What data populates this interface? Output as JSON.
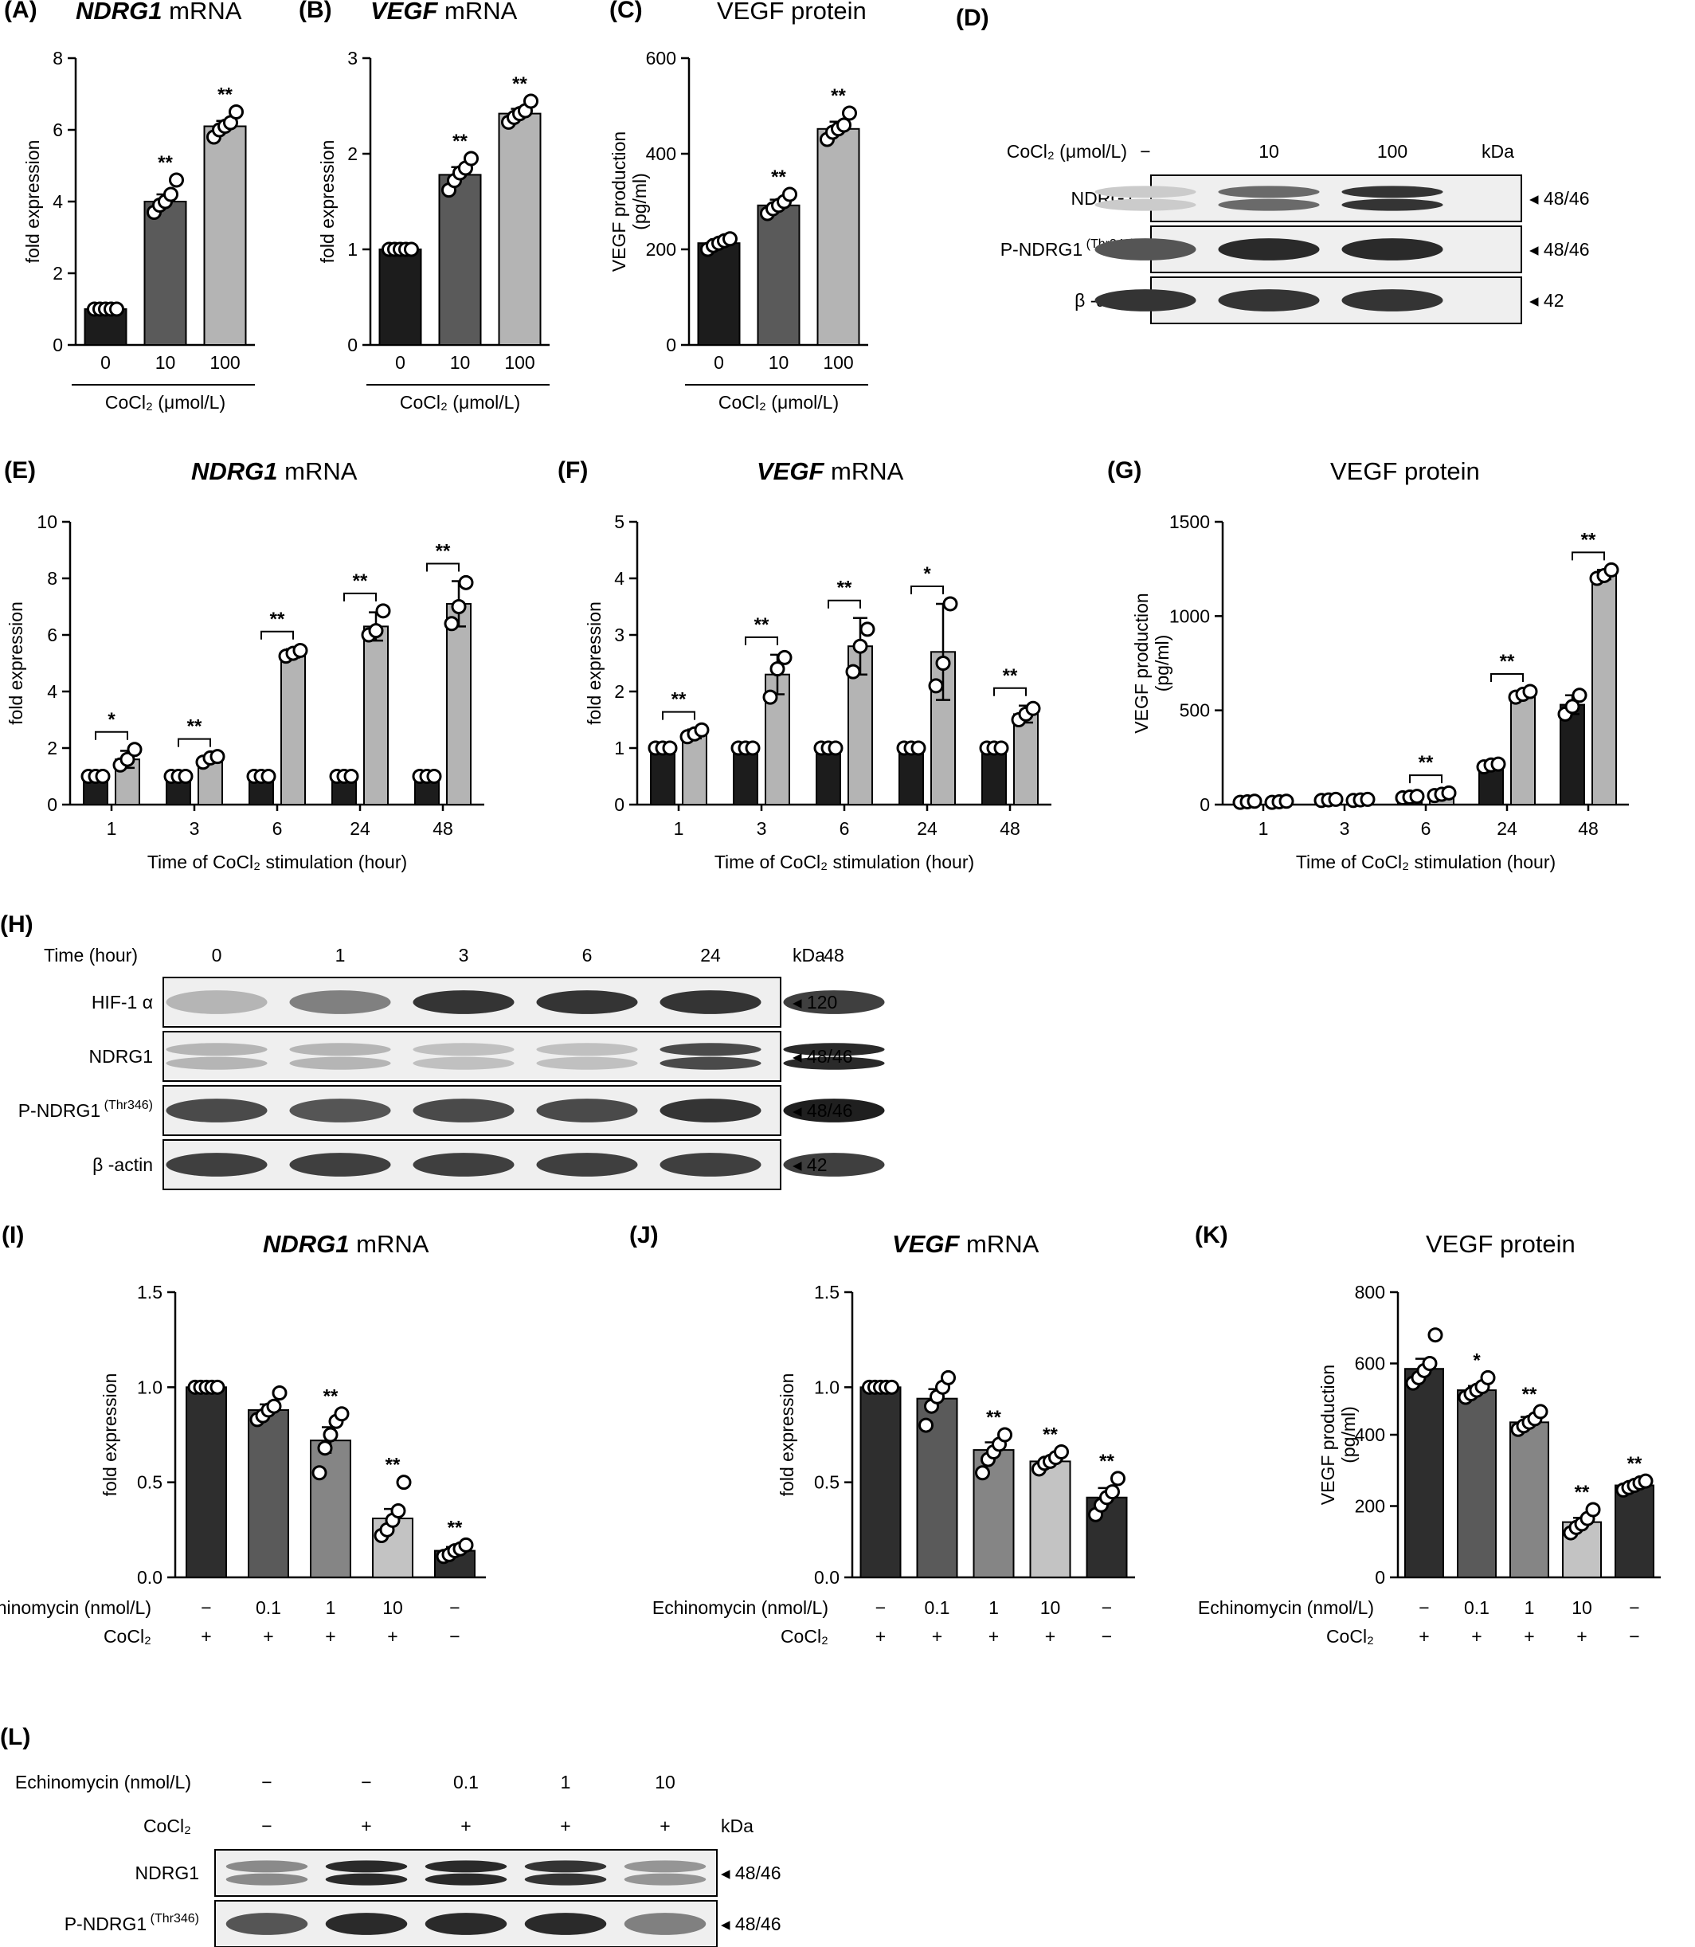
{
  "chart_data": [
    {
      "id": "A",
      "type": "bar",
      "panel_label": "(A)",
      "title_italic": "NDRG1",
      "title_rest": " mRNA",
      "ylabel": "fold expression",
      "xlabel": "CoCl₂ (μmol/L)",
      "ylim": [
        0,
        8
      ],
      "yticks": [
        0,
        2,
        4,
        6,
        8
      ],
      "categories": [
        "0",
        "10",
        "100"
      ],
      "values": [
        1.0,
        4.0,
        6.1
      ],
      "errors": [
        0,
        0.2,
        0.15
      ],
      "colors": [
        "#1c1c1c",
        "#5a5a5a",
        "#b4b4b4"
      ],
      "points": [
        [
          1,
          1,
          1,
          1,
          1
        ],
        [
          3.7,
          3.9,
          4.0,
          4.2,
          4.6
        ],
        [
          5.8,
          6.0,
          6.1,
          6.2,
          6.5
        ]
      ],
      "significance": [
        "",
        "**",
        "**"
      ]
    },
    {
      "id": "B",
      "type": "bar",
      "panel_label": "(B)",
      "title_italic": "VEGF",
      "title_rest": " mRNA",
      "ylabel": "fold expression",
      "xlabel": "CoCl₂ (μmol/L)",
      "ylim": [
        0,
        3
      ],
      "yticks": [
        0,
        1,
        2,
        3
      ],
      "categories": [
        "0",
        "10",
        "100"
      ],
      "values": [
        1.0,
        1.78,
        2.42
      ],
      "errors": [
        0,
        0.08,
        0.05
      ],
      "colors": [
        "#1c1c1c",
        "#5a5a5a",
        "#b4b4b4"
      ],
      "points": [
        [
          1,
          1,
          1,
          1,
          1
        ],
        [
          1.62,
          1.72,
          1.8,
          1.85,
          1.95
        ],
        [
          2.33,
          2.38,
          2.42,
          2.45,
          2.55
        ]
      ],
      "significance": [
        "",
        "**",
        "**"
      ]
    },
    {
      "id": "C",
      "type": "bar",
      "panel_label": "(C)",
      "title_italic": "",
      "title_rest": "VEGF protein",
      "ylabel": "VEGF production (pg/ml)",
      "xlabel": "CoCl₂ (μmol/L)",
      "ylim": [
        0,
        600
      ],
      "yticks": [
        0,
        200,
        400,
        600
      ],
      "categories": [
        "0",
        "10",
        "100"
      ],
      "values": [
        213,
        292,
        452
      ],
      "errors": [
        8,
        12,
        15
      ],
      "colors": [
        "#1c1c1c",
        "#5a5a5a",
        "#b4b4b4"
      ],
      "points": [
        [
          200,
          208,
          213,
          218,
          222
        ],
        [
          275,
          285,
          292,
          300,
          315
        ],
        [
          430,
          445,
          452,
          460,
          485
        ]
      ],
      "significance": [
        "",
        "**",
        "**"
      ]
    },
    {
      "id": "E",
      "type": "bar",
      "panel_label": "(E)",
      "title_italic": "NDRG1",
      "title_rest": " mRNA",
      "ylabel": "fold expression",
      "xlabel": "Time of CoCl₂ stimulation (hour)",
      "ylim": [
        0,
        10
      ],
      "yticks": [
        0,
        2,
        4,
        6,
        8,
        10
      ],
      "categories": [
        "1",
        "3",
        "6",
        "24",
        "48"
      ],
      "series": [
        {
          "values": [
            1,
            1,
            1,
            1,
            1
          ],
          "errors": [
            0,
            0,
            0,
            0,
            0
          ],
          "color": "#1c1c1c",
          "points": [
            [
              1,
              1,
              1
            ],
            [
              1,
              1,
              1
            ],
            [
              1,
              1,
              1
            ],
            [
              1,
              1,
              1
            ],
            [
              1,
              1,
              1
            ]
          ]
        },
        {
          "values": [
            1.6,
            1.6,
            5.35,
            6.3,
            7.1
          ],
          "errors": [
            0.3,
            0.1,
            0.15,
            0.5,
            0.8
          ],
          "color": "#b4b4b4",
          "points": [
            [
              1.4,
              1.6,
              1.95
            ],
            [
              1.5,
              1.65,
              1.7
            ],
            [
              5.25,
              5.35,
              5.45
            ],
            [
              6.0,
              6.15,
              6.85
            ],
            [
              6.4,
              7.0,
              7.85
            ]
          ]
        }
      ],
      "significance": [
        "*",
        "**",
        "**",
        "**",
        "**"
      ]
    },
    {
      "id": "F",
      "type": "bar",
      "panel_label": "(F)",
      "title_italic": "VEGF",
      "title_rest": " mRNA",
      "ylabel": "fold expression",
      "xlabel": "Time of CoCl₂ stimulation (hour)",
      "ylim": [
        0,
        5
      ],
      "yticks": [
        0,
        1,
        2,
        3,
        4,
        5
      ],
      "categories": [
        "1",
        "3",
        "6",
        "24",
        "48"
      ],
      "series": [
        {
          "values": [
            1,
            1,
            1,
            1,
            1
          ],
          "errors": [
            0,
            0,
            0,
            0,
            0
          ],
          "color": "#1c1c1c",
          "points": [
            [
              1,
              1,
              1
            ],
            [
              1,
              1,
              1
            ],
            [
              1,
              1,
              1
            ],
            [
              1,
              1,
              1
            ],
            [
              1,
              1,
              1
            ]
          ]
        },
        {
          "values": [
            1.25,
            2.3,
            2.8,
            2.7,
            1.6
          ],
          "errors": [
            0.08,
            0.35,
            0.5,
            0.85,
            0.15
          ],
          "color": "#b4b4b4",
          "points": [
            [
              1.2,
              1.25,
              1.32
            ],
            [
              1.9,
              2.4,
              2.6
            ],
            [
              2.35,
              2.8,
              3.1
            ],
            [
              2.1,
              2.5,
              3.55
            ],
            [
              1.5,
              1.6,
              1.7
            ]
          ]
        }
      ],
      "significance": [
        "**",
        "**",
        "**",
        "*",
        "**"
      ]
    },
    {
      "id": "G",
      "type": "bar",
      "panel_label": "(G)",
      "title_italic": "",
      "title_rest": "VEGF protein",
      "ylabel": "VEGF production (pg/ml)",
      "xlabel": "Time of CoCl₂ stimulation (hour)",
      "ylim": [
        0,
        1500
      ],
      "yticks": [
        0,
        500,
        1000,
        1500
      ],
      "categories": [
        "1",
        "3",
        "6",
        "24",
        "48"
      ],
      "series": [
        {
          "values": [
            15,
            25,
            40,
            210,
            530
          ],
          "errors": [
            3,
            4,
            5,
            10,
            50
          ],
          "color": "#1c1c1c",
          "points": [
            [
              12,
              15,
              18
            ],
            [
              22,
              25,
              28
            ],
            [
              36,
              40,
              44
            ],
            [
              200,
              210,
              215
            ],
            [
              480,
              520,
              580
            ]
          ]
        },
        {
          "values": [
            15,
            25,
            55,
            585,
            1220
          ],
          "errors": [
            3,
            4,
            8,
            15,
            25
          ],
          "color": "#b4b4b4",
          "points": [
            [
              12,
              15,
              18
            ],
            [
              22,
              25,
              28
            ],
            [
              48,
              55,
              62
            ],
            [
              570,
              585,
              600
            ],
            [
              1200,
              1215,
              1245
            ]
          ]
        }
      ],
      "significance": [
        "",
        "",
        "**",
        "**",
        "**"
      ]
    },
    {
      "id": "I",
      "type": "bar",
      "panel_label": "(I)",
      "title_italic": "NDRG1",
      "title_rest": " mRNA",
      "ylabel": "fold expression",
      "ylim": [
        0,
        1.5
      ],
      "yticks": [
        "0.0",
        "0.5",
        "1.0",
        "1.5"
      ],
      "row1_label": "Echinomycin (nmol/L)",
      "row2_label": "CoCl₂",
      "row1": [
        "−",
        "0.1",
        "1",
        "10",
        "−"
      ],
      "row2": [
        "+",
        "+",
        "+",
        "+",
        "−"
      ],
      "values": [
        1.0,
        0.88,
        0.72,
        0.31,
        0.14
      ],
      "errors": [
        0,
        0.03,
        0.07,
        0.05,
        0.02
      ],
      "colors": [
        "#2e2e2e",
        "#5a5a5a",
        "#858585",
        "#c3c3c3",
        "#2e2e2e"
      ],
      "points": [
        [
          1,
          1,
          1,
          1,
          1
        ],
        [
          0.83,
          0.85,
          0.88,
          0.9,
          0.97
        ],
        [
          0.55,
          0.68,
          0.75,
          0.82,
          0.86
        ],
        [
          0.22,
          0.25,
          0.3,
          0.35,
          0.5
        ],
        [
          0.11,
          0.12,
          0.14,
          0.15,
          0.17
        ]
      ],
      "significance": [
        "",
        "",
        "**",
        "**",
        "**"
      ]
    },
    {
      "id": "J",
      "type": "bar",
      "panel_label": "(J)",
      "title_italic": "VEGF",
      "title_rest": " mRNA",
      "ylabel": "fold expression",
      "ylim": [
        0,
        1.5
      ],
      "yticks": [
        "0.0",
        "0.5",
        "1.0",
        "1.5"
      ],
      "row1_label": "Echinomycin (nmol/L)",
      "row2_label": "CoCl₂",
      "row1": [
        "−",
        "0.1",
        "1",
        "10",
        "−"
      ],
      "row2": [
        "+",
        "+",
        "+",
        "+",
        "−"
      ],
      "values": [
        1.0,
        0.94,
        0.67,
        0.61,
        0.42
      ],
      "errors": [
        0,
        0.05,
        0.04,
        0.02,
        0.05
      ],
      "colors": [
        "#2e2e2e",
        "#5a5a5a",
        "#858585",
        "#c3c3c3",
        "#2e2e2e"
      ],
      "points": [
        [
          1,
          1,
          1,
          1,
          1
        ],
        [
          0.8,
          0.9,
          0.95,
          1.0,
          1.05
        ],
        [
          0.55,
          0.62,
          0.66,
          0.7,
          0.75
        ],
        [
          0.57,
          0.6,
          0.61,
          0.63,
          0.66
        ],
        [
          0.33,
          0.38,
          0.42,
          0.45,
          0.52
        ]
      ],
      "significance": [
        "",
        "",
        "**",
        "**",
        "**"
      ]
    },
    {
      "id": "K",
      "type": "bar",
      "panel_label": "(K)",
      "title_italic": "",
      "title_rest": "VEGF protein",
      "ylabel": "VEGF production (pg/ml)",
      "ylim": [
        0,
        800
      ],
      "yticks": [
        0,
        200,
        400,
        600,
        800
      ],
      "row1_label": "Echinomycin (nmol/L)",
      "row2_label": "CoCl₂",
      "row1": [
        "−",
        "0.1",
        "1",
        "10",
        "−"
      ],
      "row2": [
        "+",
        "+",
        "+",
        "+",
        "−"
      ],
      "values": [
        585,
        525,
        435,
        155,
        258
      ],
      "errors": [
        28,
        12,
        15,
        12,
        8
      ],
      "colors": [
        "#2e2e2e",
        "#5a5a5a",
        "#858585",
        "#c3c3c3",
        "#2e2e2e"
      ],
      "points": [
        [
          545,
          560,
          580,
          600,
          680
        ],
        [
          505,
          515,
          525,
          535,
          560
        ],
        [
          415,
          425,
          435,
          445,
          465
        ],
        [
          125,
          140,
          150,
          165,
          190
        ],
        [
          245,
          252,
          258,
          265,
          270
        ]
      ],
      "significance": [
        "",
        "*",
        "**",
        "**",
        "**"
      ]
    }
  ],
  "blots": [
    {
      "id": "D",
      "panel_label": "(D)",
      "header_label": "CoCl₂ (μmol/L)",
      "header_values": [
        "−",
        "10",
        "100"
      ],
      "kda_label": "kDa",
      "rows": [
        {
          "label": "NDRG1",
          "sup": "",
          "kda": "◂ 48/46",
          "intensity": [
            0.15,
            0.6,
            0.85
          ],
          "double": true
        },
        {
          "label": "P-NDRG1",
          "sup": "(Thr346)",
          "kda": "◂ 48/46",
          "intensity": [
            0.7,
            0.9,
            0.9
          ],
          "double": false
        },
        {
          "label": "β -actin",
          "sup": "",
          "kda": "◂ 42",
          "intensity": [
            0.85,
            0.85,
            0.85
          ],
          "double": false
        }
      ]
    },
    {
      "id": "H",
      "panel_label": "(H)",
      "header_label": "Time (hour)",
      "header_values": [
        "0",
        "1",
        "3",
        "6",
        "24",
        "48"
      ],
      "kda_label": "kDa",
      "rows": [
        {
          "label": "HIF-1 α",
          "sup": "",
          "kda": "◂ 120",
          "intensity": [
            0.25,
            0.5,
            0.85,
            0.85,
            0.85,
            0.8
          ],
          "double": false
        },
        {
          "label": "NDRG1",
          "sup": "",
          "kda": "◂ 48/46",
          "intensity": [
            0.25,
            0.25,
            0.2,
            0.2,
            0.75,
            0.9
          ],
          "double": true
        },
        {
          "label": "P-NDRG1",
          "sup": "(Thr346)",
          "kda": "◂ 48/46",
          "intensity": [
            0.75,
            0.7,
            0.75,
            0.75,
            0.85,
            0.95
          ],
          "double": false
        },
        {
          "label": "β -actin",
          "sup": "",
          "kda": "◂ 42",
          "intensity": [
            0.8,
            0.8,
            0.8,
            0.8,
            0.8,
            0.8
          ],
          "double": false
        }
      ]
    },
    {
      "id": "L",
      "panel_label": "(L)",
      "header_label": "Echinomycin (nmol/L)",
      "header_values": [
        "−",
        "−",
        "0.1",
        "1",
        "10"
      ],
      "header2_label": "CoCl₂",
      "header2_values": [
        "−",
        "+",
        "+",
        "+",
        "+"
      ],
      "kda_label": "kDa",
      "rows": [
        {
          "label": "NDRG1",
          "sup": "",
          "kda": "◂ 48/46",
          "intensity": [
            0.45,
            0.9,
            0.9,
            0.85,
            0.4
          ],
          "double": true
        },
        {
          "label": "P-NDRG1",
          "sup": "(Thr346)",
          "kda": "◂ 48/46",
          "intensity": [
            0.7,
            0.9,
            0.9,
            0.9,
            0.5
          ],
          "double": false
        },
        {
          "label": "β -actin",
          "sup": "",
          "kda": "◂ 42",
          "intensity": [
            0.85,
            0.85,
            0.85,
            0.85,
            0.85
          ],
          "double": false
        }
      ]
    }
  ]
}
